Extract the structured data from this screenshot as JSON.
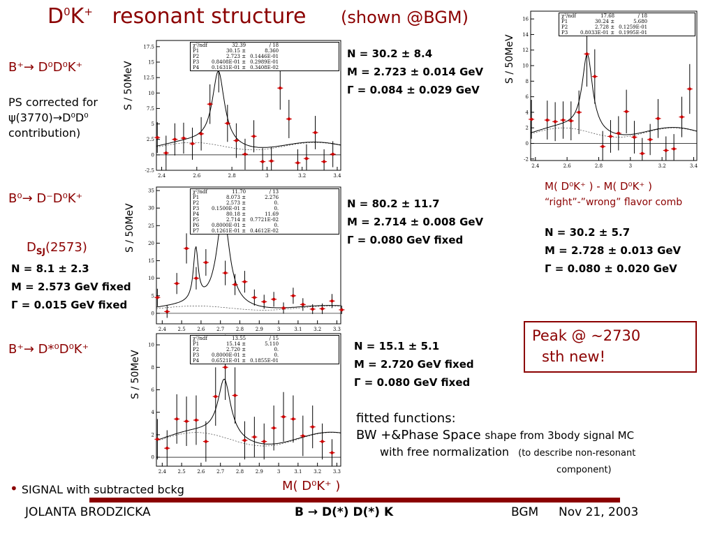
{
  "title": {
    "main_sup": "0",
    "main_K": "K",
    "main_sup2": "+",
    "main_D": "D",
    "rest": "resonant structure",
    "shown": "(shown @BGM)"
  },
  "decays": {
    "d1": "B⁺→ D⁰D⁰K⁺",
    "d2": "B⁰→ D⁻D⁰K⁺",
    "d3": "B⁺→ D*⁰D⁰K⁺"
  },
  "ps_note": [
    "PS corrected for",
    "ψ(3770)→D⁰D⁰",
    "contribution)"
  ],
  "dsj": {
    "label": "D",
    "sub": "SJ",
    "mass": "(2573)",
    "n": "N = 8.1 ± 2.3",
    "m": "M = 2.573 GeV fixed",
    "g": "Γ = 0.015 GeV fixed"
  },
  "fits": {
    "p1": {
      "n": "N = 30.2 ± 8.4",
      "m": "M = 2.723 ± 0.014 GeV",
      "g": "Γ = 0.084 ± 0.029 GeV"
    },
    "p2": {
      "n": "N = 80.2 ± 11.7",
      "m": "M = 2.714 ± 0.008 GeV",
      "g": "Γ = 0.080 GeV fixed"
    },
    "p3": {
      "n": "N = 15.1 ± 5.1",
      "m": "M = 2.720 GeV fixed",
      "g": "Γ = 0.080 GeV fixed"
    },
    "p4": {
      "n": "N = 30.2 ± 5.7",
      "m": "M = 2.728 ± 0.013 GeV",
      "g": "Γ = 0.080 ± 0.020 GeV"
    }
  },
  "mass_diff_label": "M( D⁰K⁺ ) - M( D⁰K⁺ )",
  "rw_label": "“right”-”wrong” flavor comb",
  "peak_box": [
    "Peak @ ~2730",
    "sth new!"
  ],
  "fitted": [
    "fitted functions:",
    "BW +&Phase Space",
    "shape from 3body signal MC",
    "with free normalization",
    "(to describe non-resonant",
    "component)"
  ],
  "signal_note": "SIGNAL with subtracted bckg",
  "xaxis_label": "M( D⁰K⁺ )",
  "footer": {
    "author": "JOLANTA BRODZICKA",
    "center": "B → D(*) D(*) K",
    "conf": "BGM",
    "date": "Nov 21, 2003"
  },
  "ylabel": "S / 50MeV",
  "colors": {
    "accent": "#8b0000",
    "points": "#cc0000"
  },
  "chart_data": [
    {
      "type": "scatter",
      "ylabel": "S / 50MeV",
      "xlim": [
        2.37,
        3.42
      ],
      "ylim": [
        -2.5,
        18.5
      ],
      "xticks": [
        "2.4",
        "2.6",
        "2.8",
        "3",
        "3.2",
        "3.4"
      ],
      "yticks": [
        "-2.5",
        "0",
        "2.5",
        "5",
        "7.5",
        "10",
        "12.5",
        "15",
        "17.5"
      ],
      "x": [
        2.375,
        2.425,
        2.475,
        2.525,
        2.575,
        2.625,
        2.675,
        2.725,
        2.775,
        2.825,
        2.875,
        2.925,
        2.975,
        3.025,
        3.075,
        3.125,
        3.175,
        3.225,
        3.275,
        3.325,
        3.375
      ],
      "y": [
        2.8,
        0.3,
        2.5,
        2.7,
        1.8,
        3.4,
        8.2,
        13.9,
        5.1,
        2.3,
        0.1,
        3.0,
        -1.1,
        -1.0,
        10.8,
        5.8,
        -1.3,
        -0.6,
        3.6,
        -1.1,
        0.1
      ],
      "err": [
        2.5,
        2.8,
        2.6,
        2.5,
        2.6,
        2.7,
        3.2,
        3.8,
        3.0,
        2.8,
        2.5,
        2.6,
        2.2,
        2.2,
        3.5,
        3.1,
        2.2,
        2.3,
        2.7,
        2.0,
        2.1
      ],
      "stats": [
        [
          "χ²/ndf",
          "32.39",
          "/ 18"
        ],
        [
          "P1",
          "30.15 ±",
          "8.360"
        ],
        [
          "P2",
          "2.723 ±",
          "0.1446E-01"
        ],
        [
          "P3",
          "0.8408E-01 ±",
          "0.2989E-01"
        ],
        [
          "P4",
          "0.1631E-01 ±",
          "0.3408E-02"
        ]
      ]
    },
    {
      "type": "scatter",
      "ylabel": "S / 50MeV",
      "xlim": [
        2.37,
        3.32
      ],
      "ylim": [
        -3,
        36
      ],
      "xticks": [
        "2.4",
        "2.5",
        "2.6",
        "2.7",
        "2.8",
        "2.9",
        "3",
        "3.1",
        "3.2",
        "3.3"
      ],
      "yticks": [
        "0",
        "5",
        "10",
        "15",
        "20",
        "25",
        "30",
        "35"
      ],
      "x": [
        2.375,
        2.425,
        2.475,
        2.525,
        2.575,
        2.625,
        2.675,
        2.725,
        2.775,
        2.825,
        2.875,
        2.925,
        2.975,
        3.025,
        3.075,
        3.125,
        3.175,
        3.225,
        3.275,
        3.325
      ],
      "y": [
        4.5,
        0.5,
        8.5,
        18.5,
        10.0,
        14.5,
        28.0,
        11.5,
        8.2,
        9.0,
        4.5,
        3.3,
        4.0,
        1.5,
        5.0,
        2.5,
        1.2,
        1.3,
        3.5,
        1.0
      ],
      "err": [
        2.5,
        1.8,
        3.0,
        4.3,
        3.2,
        3.8,
        5.2,
        3.5,
        3.0,
        3.1,
        2.3,
        2.0,
        2.1,
        1.6,
        2.3,
        1.8,
        1.4,
        1.5,
        2.0,
        1.2
      ],
      "stats": [
        [
          "χ²/ndf",
          "11.70",
          "/ 13"
        ],
        [
          "P1",
          "8.073 ±",
          "2.276"
        ],
        [
          "P2",
          "2.573 ±",
          "0."
        ],
        [
          "P3",
          "0.1500E-01 ±",
          "0."
        ],
        [
          "P4",
          "80.18 ±",
          "11.69"
        ],
        [
          "P5",
          "2.714 ±",
          "0.7721E-02"
        ],
        [
          "P6",
          "0.8000E-01 ±",
          "0."
        ],
        [
          "P7",
          "0.1261E-01 ±",
          "0.4612E-02"
        ]
      ]
    },
    {
      "type": "scatter",
      "ylabel": "S / 50MeV",
      "xlim": [
        2.37,
        3.32
      ],
      "ylim": [
        -0.8,
        11
      ],
      "xticks": [
        "2.4",
        "2.5",
        "2.6",
        "2.7",
        "2.8",
        "2.9",
        "3",
        "3.1",
        "3.2",
        "3.3"
      ],
      "yticks": [
        "0",
        "2",
        "4",
        "6",
        "8",
        "10"
      ],
      "x": [
        2.375,
        2.425,
        2.475,
        2.525,
        2.575,
        2.625,
        2.675,
        2.725,
        2.775,
        2.825,
        2.875,
        2.925,
        2.975,
        3.025,
        3.075,
        3.125,
        3.175,
        3.225,
        3.275
      ],
      "y": [
        1.6,
        0.8,
        3.4,
        3.2,
        3.3,
        1.4,
        5.4,
        8.0,
        5.5,
        1.5,
        1.8,
        1.4,
        2.6,
        3.6,
        3.4,
        1.9,
        2.7,
        1.4,
        0.4
      ],
      "err": [
        1.8,
        1.6,
        2.2,
        2.2,
        2.2,
        1.8,
        2.6,
        2.9,
        2.5,
        1.7,
        1.8,
        1.6,
        2.0,
        2.2,
        2.1,
        1.8,
        1.9,
        1.6,
        1.2
      ],
      "stats": [
        [
          "χ²/ndf",
          "13.55",
          "/ 15"
        ],
        [
          "P1",
          "15.14 ±",
          "5.110"
        ],
        [
          "P2",
          "2.720 ±",
          "0."
        ],
        [
          "P3",
          "0.8000E-01 ±",
          "0."
        ],
        [
          "P4",
          "0.6521E-01 ±",
          "0.1855E-01"
        ]
      ]
    },
    {
      "type": "scatter",
      "ylabel": "S / 50MeV",
      "xlim": [
        2.37,
        3.42
      ],
      "ylim": [
        -2.2,
        17
      ],
      "xticks": [
        "2.4",
        "2.6",
        "2.8",
        "3",
        "3.2",
        "3.4"
      ],
      "yticks": [
        "-2",
        "0",
        "2",
        "4",
        "6",
        "8",
        "10",
        "12",
        "14",
        "16"
      ],
      "x": [
        2.375,
        2.475,
        2.525,
        2.575,
        2.625,
        2.675,
        2.725,
        2.775,
        2.825,
        2.875,
        2.925,
        2.975,
        3.025,
        3.075,
        3.125,
        3.175,
        3.225,
        3.275,
        3.325,
        3.375
      ],
      "y": [
        3.1,
        3.0,
        2.8,
        3.0,
        2.9,
        4.0,
        11.5,
        8.6,
        -0.4,
        0.9,
        1.3,
        4.1,
        0.8,
        -1.3,
        0.5,
        3.2,
        -0.9,
        -0.7,
        3.4,
        7.0
      ],
      "err": [
        2.5,
        2.5,
        2.5,
        2.4,
        2.5,
        2.8,
        4.2,
        3.5,
        2.0,
        2.1,
        2.2,
        2.8,
        2.1,
        2.0,
        2.0,
        2.5,
        1.8,
        1.9,
        2.6,
        3.2
      ],
      "stats": [
        [
          "χ²/ndf",
          "17.68",
          "/ 18"
        ],
        [
          "P1",
          "30.24 ±",
          "5.680"
        ],
        [
          "P2",
          "2.728 ±",
          "0.1259E-01"
        ],
        [
          "P3",
          "0.8033E-01 ±",
          "0.1995E-01"
        ]
      ]
    }
  ]
}
